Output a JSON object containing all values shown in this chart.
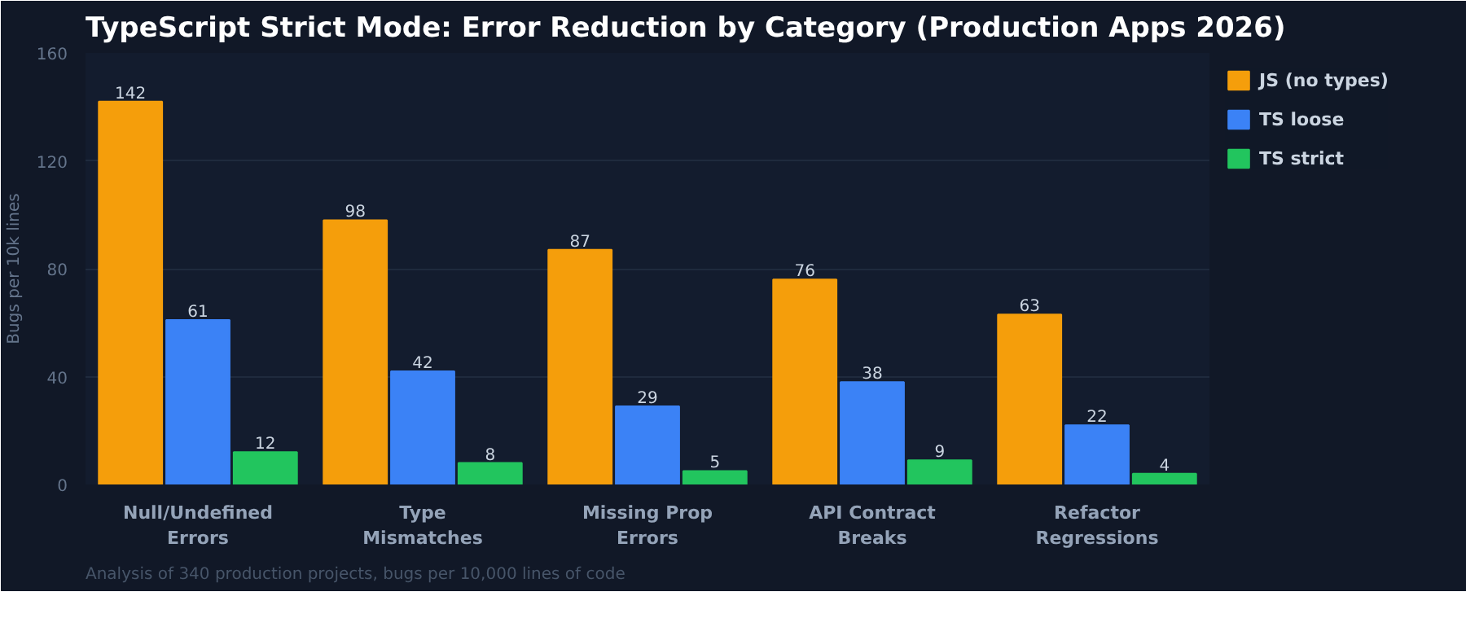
{
  "chart_data": {
    "type": "bar",
    "title": "TypeScript Strict Mode: Error Reduction by Category (Production Apps 2026)",
    "ylabel": "Bugs per 10k lines",
    "categories": [
      "Null/Undefined\nErrors",
      "Type\nMismatches",
      "Missing Prop\nErrors",
      "API Contract\nBreaks",
      "Refactor\nRegressions"
    ],
    "series": [
      {
        "name": "JS (no types)",
        "color": "#f59e0b",
        "values": [
          142,
          98,
          87,
          76,
          63
        ]
      },
      {
        "name": "TS loose",
        "color": "#3b82f6",
        "values": [
          61,
          42,
          29,
          38,
          22
        ]
      },
      {
        "name": "TS strict",
        "color": "#22c55e",
        "values": [
          12,
          8,
          5,
          9,
          4
        ]
      }
    ],
    "ylim": [
      0,
      160
    ],
    "yticks": [
      0,
      40,
      80,
      120,
      160
    ],
    "grid": "y",
    "legend": "right",
    "data_labels": true,
    "annotations": [
      "Analysis of 340 production projects, bugs per 10,000 lines of code"
    ]
  }
}
